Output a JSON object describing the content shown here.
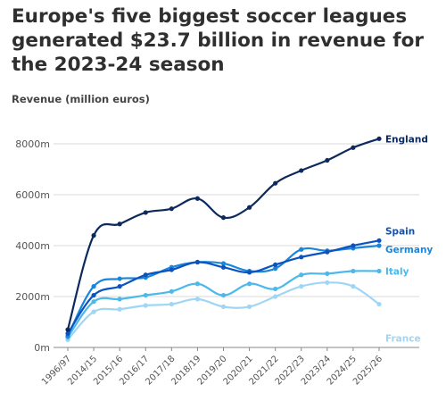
{
  "title": "Europe's five biggest soccer leagues generated $23.7 billion in revenue for the 2023-24 season",
  "colors": {
    "England": "#0d2a5c",
    "Spain": "#0b53c0",
    "Germany": "#1a86d8",
    "Italy": "#4cb8ec",
    "France": "#9fd6f5",
    "grid": "#d9d9d9",
    "axis": "#888888"
  },
  "chart_data": {
    "type": "line",
    "title": "",
    "ylabel": "Revenue (million euros)",
    "xlabel": "",
    "ylim": [
      0,
      9000
    ],
    "yticks": [
      0,
      2000,
      4000,
      6000,
      8000
    ],
    "ytick_labels": [
      "0m",
      "2000m",
      "4000m",
      "6000m",
      "8000m"
    ],
    "categories": [
      "1996/97",
      "2014/15",
      "2015/16",
      "2016/17",
      "2017/18",
      "2018/19",
      "2019/20",
      "2020/21",
      "2021/22",
      "2022/23",
      "2023/24",
      "2024/25",
      "2025/26"
    ],
    "grid": "horizontal",
    "legend": "labels at line ends",
    "series": [
      {
        "name": "England",
        "values": [
          700,
          4400,
          4850,
          5300,
          5450,
          5850,
          5100,
          5500,
          6450,
          6950,
          7350,
          7850,
          8200
        ]
      },
      {
        "name": "Spain",
        "values": [
          550,
          2050,
          2400,
          2850,
          3050,
          3350,
          3150,
          2950,
          3250,
          3550,
          3750,
          4000,
          4200
        ]
      },
      {
        "name": "Germany",
        "values": [
          450,
          2400,
          2700,
          2750,
          3150,
          3350,
          3300,
          3000,
          3100,
          3850,
          3800,
          3900,
          4000
        ]
      },
      {
        "name": "Italy",
        "values": [
          400,
          1800,
          1900,
          2050,
          2200,
          2500,
          2050,
          2500,
          2300,
          2850,
          2900,
          3000,
          3000
        ]
      },
      {
        "name": "France",
        "values": [
          300,
          1400,
          1500,
          1650,
          1700,
          1900,
          1600,
          1600,
          2000,
          2400,
          2550,
          2400,
          1700
        ]
      }
    ]
  }
}
